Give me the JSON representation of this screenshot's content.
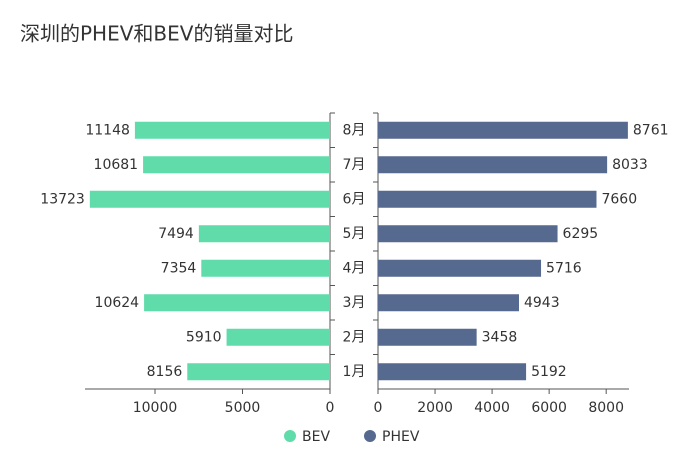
{
  "chart_data": {
    "type": "butterfly",
    "title": "深圳的PHEV和BEV的销量对比",
    "categories": [
      "8月",
      "7月",
      "6月",
      "5月",
      "4月",
      "3月",
      "2月",
      "1月"
    ],
    "series": [
      {
        "name": "BEV",
        "color": "#5fdcaa",
        "values": [
          11148,
          10681,
          13723,
          7494,
          7354,
          10624,
          5910,
          8156
        ],
        "xlim": [
          0,
          14000
        ],
        "xticks": [
          0,
          5000,
          10000
        ]
      },
      {
        "name": "PHEV",
        "color": "#56698f",
        "values": [
          8761,
          8033,
          7660,
          6295,
          5716,
          4943,
          3458,
          5192
        ],
        "xlim": [
          0,
          8800
        ],
        "xticks": [
          0,
          2000,
          4000,
          6000,
          8000
        ]
      }
    ]
  }
}
